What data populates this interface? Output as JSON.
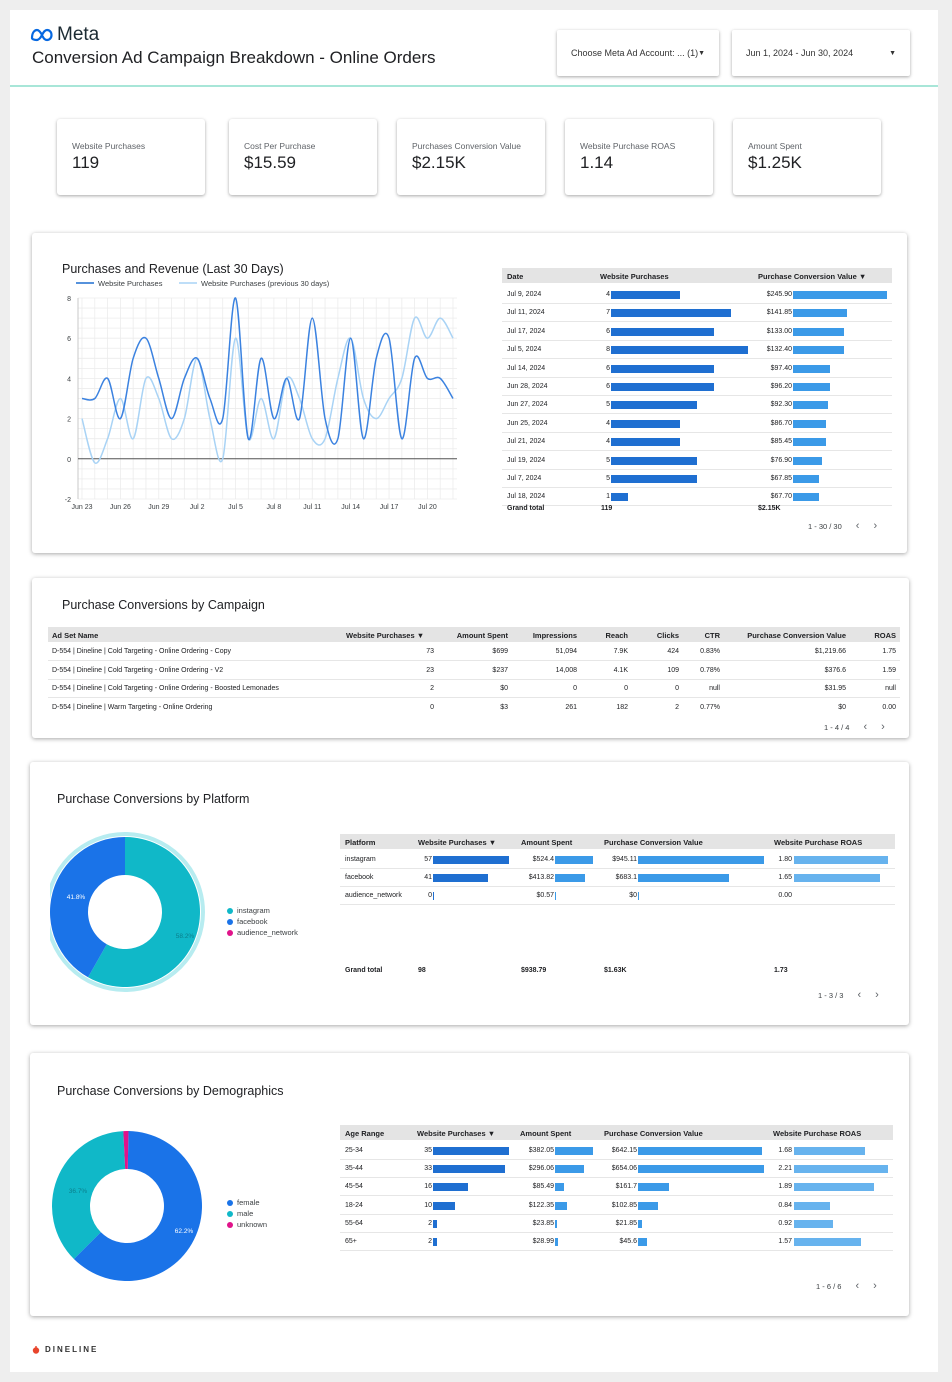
{
  "header": {
    "logo_text": "Meta",
    "title": "Conversion Ad Campaign Breakdown - Online Orders",
    "account_selector": "Choose Meta Ad Account: ... (1)",
    "date_range": "Jun 1, 2024 - Jun 30, 2024"
  },
  "kpis": [
    {
      "label": "Website Purchases",
      "value": "119"
    },
    {
      "label": "Cost Per Purchase",
      "value": "$15.59"
    },
    {
      "label": "Purchases Conversion Value",
      "value": "$2.15K"
    },
    {
      "label": "Website Purchase ROAS",
      "value": "1.14"
    },
    {
      "label": "Amount Spent",
      "value": "$1.25K"
    }
  ],
  "colors": {
    "accent_dark": "#1f6fd1",
    "accent_light": "#3b9ae8",
    "series_prev": "#a9d3f5",
    "teal": "#10b8c8",
    "pink": "#e0138a",
    "brand_line": "#a8e6d8"
  },
  "revenue_panel": {
    "title": "Purchases and Revenue  (Last 30 Days)",
    "table": {
      "headers": [
        "Date",
        "Website Purchases",
        "Purchase Conversion Value"
      ],
      "sort_indicator": "▼",
      "rows": [
        {
          "date": "Jul 9, 2024",
          "purchases": 4,
          "value_label": "$245.90",
          "value": 245.9
        },
        {
          "date": "Jul 11, 2024",
          "purchases": 7,
          "value_label": "$141.85",
          "value": 141.85
        },
        {
          "date": "Jul 17, 2024",
          "purchases": 6,
          "value_label": "$133.00",
          "value": 133.0
        },
        {
          "date": "Jul 5, 2024",
          "purchases": 8,
          "value_label": "$132.40",
          "value": 132.4
        },
        {
          "date": "Jul 14, 2024",
          "purchases": 6,
          "value_label": "$97.40",
          "value": 97.4
        },
        {
          "date": "Jun 28, 2024",
          "purchases": 6,
          "value_label": "$96.20",
          "value": 96.2
        },
        {
          "date": "Jun 27, 2024",
          "purchases": 5,
          "value_label": "$92.30",
          "value": 92.3
        },
        {
          "date": "Jun 25, 2024",
          "purchases": 4,
          "value_label": "$86.70",
          "value": 86.7
        },
        {
          "date": "Jul 21, 2024",
          "purchases": 4,
          "value_label": "$85.45",
          "value": 85.45
        },
        {
          "date": "Jul 19, 2024",
          "purchases": 5,
          "value_label": "$76.90",
          "value": 76.9
        },
        {
          "date": "Jul 7, 2024",
          "purchases": 5,
          "value_label": "$67.85",
          "value": 67.85
        },
        {
          "date": "Jul 18, 2024",
          "purchases": 1,
          "value_label": "$67.70",
          "value": 67.7
        }
      ],
      "grand_total": {
        "label": "Grand total",
        "purchases": "119",
        "value": "$2.15K"
      },
      "pager": "1 - 30 / 30"
    }
  },
  "chart_data": {
    "type": "line",
    "title": "",
    "x": [
      "Jun 23",
      "Jun 24",
      "Jun 25",
      "Jun 26",
      "Jun 27",
      "Jun 28",
      "Jun 29",
      "Jun 30",
      "Jul 1",
      "Jul 2",
      "Jul 3",
      "Jul 4",
      "Jul 5",
      "Jul 6",
      "Jul 7",
      "Jul 8",
      "Jul 9",
      "Jul 10",
      "Jul 11",
      "Jul 12",
      "Jul 13",
      "Jul 14",
      "Jul 15",
      "Jul 16",
      "Jul 17",
      "Jul 18",
      "Jul 19",
      "Jul 20",
      "Jul 21",
      "Jul 22"
    ],
    "xticks": [
      "Jun 23",
      "Jun 26",
      "Jun 29",
      "Jul 2",
      "Jul 5",
      "Jul 8",
      "Jul 11",
      "Jul 14",
      "Jul 17",
      "Jul 20"
    ],
    "series": [
      {
        "name": "Website Purchases",
        "values": [
          3,
          3,
          4,
          2,
          5,
          6,
          4,
          2,
          4,
          5,
          3,
          2,
          8,
          1,
          5,
          2,
          4,
          2,
          7,
          2,
          1,
          6,
          1,
          5,
          6,
          1,
          5,
          4,
          4,
          3
        ]
      },
      {
        "name": "Website Purchases (previous 30 days)",
        "values": [
          2,
          -0.2,
          1,
          3,
          1,
          4,
          3,
          1,
          2,
          5,
          2,
          0,
          6,
          1,
          3,
          1,
          4,
          3,
          1,
          1,
          4,
          6,
          3,
          2,
          3,
          4,
          7,
          6,
          7,
          6
        ]
      }
    ],
    "ylim": [
      -2,
      8
    ],
    "yticks": [
      -2,
      0,
      2,
      4,
      6,
      8
    ],
    "grid": true,
    "legend": "top"
  },
  "campaign_panel": {
    "title": "Purchase Conversions by Campaign",
    "headers": [
      "Ad Set Name",
      "Website Purchases ▼",
      "Amount Spent",
      "Impressions",
      "Reach",
      "Clicks",
      "CTR",
      "Purchase Conversion Value",
      "ROAS"
    ],
    "rows": [
      [
        "D-554 | Dineline | Cold Targeting - Online Ordering - Copy",
        "73",
        "$699",
        "51,094",
        "7.9K",
        "424",
        "0.83%",
        "$1,219.66",
        "1.75"
      ],
      [
        "D-554 | Dineline | Cold Targeting - Online Ordering - V2",
        "23",
        "$237",
        "14,008",
        "4.1K",
        "109",
        "0.78%",
        "$376.6",
        "1.59"
      ],
      [
        "D-554 | Dineline | Cold Targeting - Online Ordering - Boosted Lemonades",
        "2",
        "$0",
        "0",
        "0",
        "0",
        "null",
        "$31.95",
        "null"
      ],
      [
        "D-554 | Dineline | Warm Targeting - Online Ordering",
        "0",
        "$3",
        "261",
        "182",
        "2",
        "0.77%",
        "$0",
        "0.00"
      ]
    ],
    "pager": "1 - 4 / 4"
  },
  "platform_panel": {
    "title": "Purchase Conversions by Platform",
    "donut": [
      {
        "name": "instagram",
        "percent": 58.2,
        "label": "58.2%",
        "color": "#10b8c8"
      },
      {
        "name": "facebook",
        "percent": 41.8,
        "label": "41.8%",
        "color": "#1a73e8"
      },
      {
        "name": "audience_network",
        "percent": 0,
        "label": "",
        "color": "#e0138a"
      }
    ],
    "headers": [
      "Platform",
      "Website Purchases ▼",
      "Amount Spent",
      "Purchase Conversion Value",
      "Website Purchase ROAS"
    ],
    "rows": [
      {
        "platform": "instagram",
        "purchases": "57",
        "p": 57,
        "spent": "$524.4",
        "s": 524.4,
        "value": "$945.11",
        "v": 945.11,
        "roas": "1.80",
        "r": 1.8
      },
      {
        "platform": "facebook",
        "purchases": "41",
        "p": 41,
        "spent": "$413.82",
        "s": 413.82,
        "value": "$683.1",
        "v": 683.1,
        "roas": "1.65",
        "r": 1.65
      },
      {
        "platform": "audience_network",
        "purchases": "0",
        "p": 0,
        "spent": "$0.57",
        "s": 0.57,
        "value": "$0",
        "v": 0,
        "roas": "0.00",
        "r": 0
      }
    ],
    "grand_total": {
      "label": "Grand total",
      "purchases": "98",
      "spent": "$938.79",
      "value": "$1.63K",
      "roas": "1.73"
    },
    "pager": "1 - 3 / 3"
  },
  "demo_panel": {
    "title": "Purchase Conversions by Demographics",
    "donut": [
      {
        "name": "female",
        "percent": 62.2,
        "label": "62.2%",
        "color": "#1a73e8"
      },
      {
        "name": "male",
        "percent": 36.7,
        "label": "36.7%",
        "color": "#10b8c8"
      },
      {
        "name": "unknown",
        "percent": 1.1,
        "label": "",
        "color": "#e0138a"
      }
    ],
    "headers": [
      "Age Range",
      "Website Purchases ▼",
      "Amount Spent",
      "Purchase Conversion Value",
      "Website Purchase ROAS"
    ],
    "rows": [
      {
        "age": "25-34",
        "purchases": "35",
        "p": 35,
        "spent": "$382.05",
        "s": 382.05,
        "value": "$642.15",
        "v": 642.15,
        "roas": "1.68",
        "r": 1.68
      },
      {
        "age": "35-44",
        "purchases": "33",
        "p": 33,
        "spent": "$296.06",
        "s": 296.06,
        "value": "$654.06",
        "v": 654.06,
        "roas": "2.21",
        "r": 2.21
      },
      {
        "age": "45-54",
        "purchases": "16",
        "p": 16,
        "spent": "$85.49",
        "s": 85.49,
        "value": "$161.7",
        "v": 161.7,
        "roas": "1.89",
        "r": 1.89
      },
      {
        "age": "18-24",
        "purchases": "10",
        "p": 10,
        "spent": "$122.35",
        "s": 122.35,
        "value": "$102.85",
        "v": 102.85,
        "roas": "0.84",
        "r": 0.84
      },
      {
        "age": "55-64",
        "purchases": "2",
        "p": 2,
        "spent": "$23.85",
        "s": 23.85,
        "value": "$21.85",
        "v": 21.85,
        "roas": "0.92",
        "r": 0.92
      },
      {
        "age": "65+",
        "purchases": "2",
        "p": 2,
        "spent": "$28.99",
        "s": 28.99,
        "value": "$45.6",
        "v": 45.6,
        "roas": "1.57",
        "r": 1.57
      }
    ],
    "pager": "1 - 6 / 6"
  },
  "footer": {
    "brand": "DINELINE"
  }
}
